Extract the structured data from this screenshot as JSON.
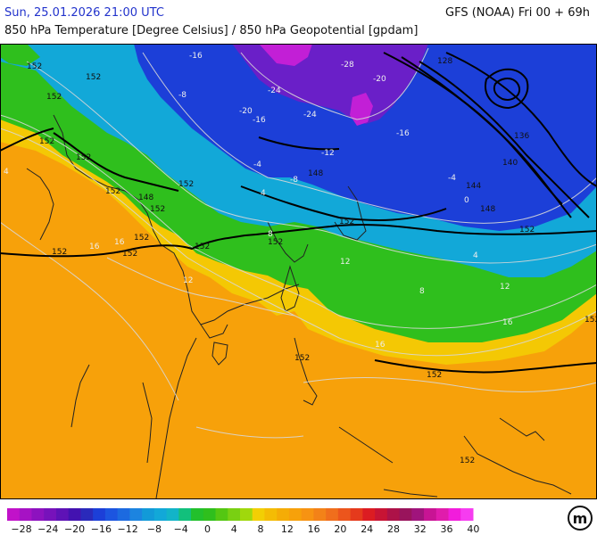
{
  "header": {
    "datetime": "Sun, 25.01.2026 21:00 UTC",
    "model": "GFS (NOAA) Fri 00 + 69h",
    "title": "850 hPa Temperature [Degree Celsius] / 850 hPa Geopotential [gpdam]"
  },
  "colors": {
    "warm_orange": "#f7a10a",
    "yellow": "#f4c804",
    "green": "#2fbf1d",
    "cyan": "#12a8d8",
    "blue": "#1c3fd8",
    "purple": "#6a1fc8",
    "magenta": "#c21fd6",
    "geopotential_contour": "#000000",
    "temperature_isotherm": "#d8d8d8"
  },
  "geopotential_labels": [
    "152",
    "152",
    "152",
    "148",
    "152",
    "152",
    "152",
    "152",
    "152",
    "152",
    "152",
    "148",
    "152",
    "152",
    "152",
    "152",
    "144",
    "140",
    "136",
    "128",
    "148",
    "152",
    "152",
    "152",
    "152",
    "152"
  ],
  "temperature_labels": [
    "-28",
    "-20",
    "-24",
    "-20",
    "-16",
    "-24",
    "-16",
    "-12",
    "-8",
    "-4",
    "0",
    "4",
    "8",
    "12",
    "16",
    "-16",
    "-8",
    "-4",
    "4",
    "8",
    "12",
    "16",
    "16",
    "12",
    "16",
    "4"
  ],
  "legend": {
    "labels": [
      "−28",
      "−24",
      "−20",
      "−16",
      "−12",
      "−8",
      "−4",
      "0",
      "4",
      "8",
      "12",
      "16",
      "20",
      "24",
      "28",
      "32",
      "36",
      "40"
    ],
    "colors": [
      "#c112c9",
      "#a612c4",
      "#8d12bf",
      "#7712bb",
      "#5e12b6",
      "#4312b0",
      "#2a2abb",
      "#1c3fd8",
      "#1c55e0",
      "#1c6ae0",
      "#1c84e0",
      "#129ad8",
      "#12a8d8",
      "#12b4c8",
      "#12c07c",
      "#22c02c",
      "#2fbf1d",
      "#54c712",
      "#79d012",
      "#a0d80c",
      "#f2cf04",
      "#f4bc04",
      "#f5ac06",
      "#f7a10a",
      "#f79312",
      "#f38218",
      "#f06e1c",
      "#ec551c",
      "#e53a1c",
      "#dc1c22",
      "#c81434",
      "#ad1248",
      "#99145c",
      "#a0147c",
      "#c81494",
      "#e01cac",
      "#f21cdc",
      "#f63cf0"
    ]
  },
  "logo": {
    "text": "m"
  }
}
